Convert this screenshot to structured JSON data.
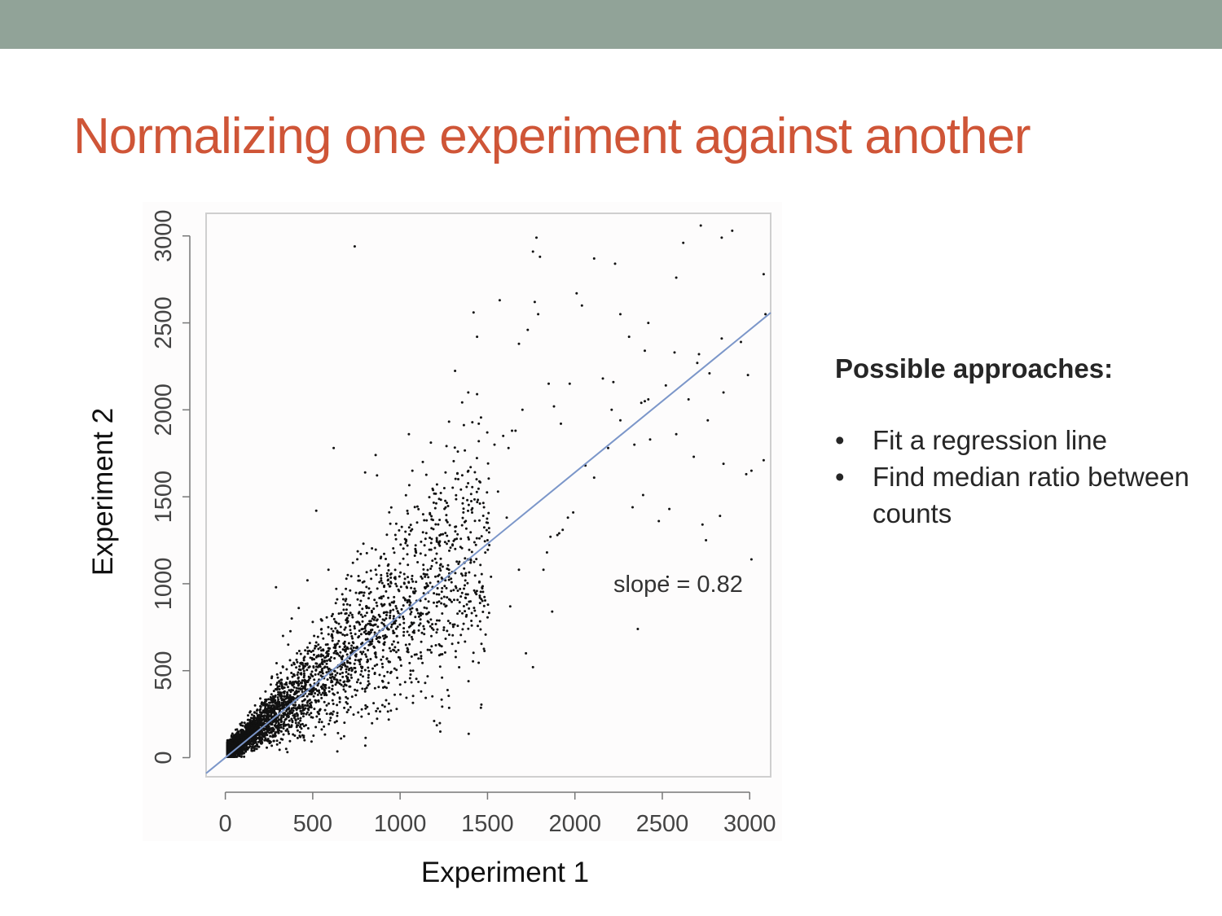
{
  "slide": {
    "title": "Normalizing one experiment against another"
  },
  "colors": {
    "top_bar": "#91a398",
    "title": "#cf5537",
    "regression_line": "#7b96c9",
    "points": "#111111",
    "plot_background": "#fdfcfc"
  },
  "side_panel": {
    "heading": "Possible approaches:",
    "bullet_glyph": "•",
    "bullets": [
      "Fit a regression line",
      "Find median ratio between counts"
    ]
  },
  "chart_data": {
    "type": "scatter",
    "title": "",
    "xlabel": "Experiment 1",
    "ylabel": "Experiment 2",
    "xlim": [
      -110,
      3120
    ],
    "ylim": [
      -110,
      3130
    ],
    "x_ticks": [
      0,
      500,
      1000,
      1500,
      2000,
      2500,
      3000
    ],
    "y_ticks": [
      0,
      500,
      1000,
      1500,
      2000,
      2500,
      3000
    ],
    "grid": false,
    "annotation": "slope = 0.82",
    "regression_line": {
      "slope": 0.82,
      "intercept": 0
    },
    "n_points_approx": 4500,
    "sample_points": [
      [
        740,
        2940
      ],
      [
        1780,
        2990
      ],
      [
        1760,
        2910
      ],
      [
        1800,
        2880
      ],
      [
        2110,
        2870
      ],
      [
        2230,
        2840
      ],
      [
        2620,
        2960
      ],
      [
        2720,
        3060
      ],
      [
        2900,
        3030
      ],
      [
        2840,
        2990
      ],
      [
        3080,
        2780
      ],
      [
        2580,
        2760
      ],
      [
        2010,
        2670
      ],
      [
        1570,
        2630
      ],
      [
        1770,
        2620
      ],
      [
        1420,
        2560
      ],
      [
        1790,
        2550
      ],
      [
        1880,
        2020
      ],
      [
        1920,
        1920
      ],
      [
        1440,
        2420
      ],
      [
        1680,
        2380
      ],
      [
        1730,
        2460
      ],
      [
        2040,
        2600
      ],
      [
        2260,
        2550
      ],
      [
        2420,
        2500
      ],
      [
        2570,
        2330
      ],
      [
        2710,
        2320
      ],
      [
        2850,
        2100
      ],
      [
        2990,
        2200
      ],
      [
        3090,
        2550
      ],
      [
        2400,
        2050
      ],
      [
        2420,
        2060
      ],
      [
        2380,
        2040
      ],
      [
        2340,
        1800
      ],
      [
        2430,
        1830
      ],
      [
        2580,
        1860
      ],
      [
        2680,
        1730
      ],
      [
        2760,
        1940
      ],
      [
        2850,
        1690
      ],
      [
        2980,
        1630
      ],
      [
        3010,
        1650
      ],
      [
        3080,
        1710
      ],
      [
        3010,
        1140
      ],
      [
        2750,
        1250
      ],
      [
        2730,
        1340
      ],
      [
        2830,
        1390
      ],
      [
        2360,
        740
      ],
      [
        2060,
        1680
      ],
      [
        1910,
        1290
      ],
      [
        1900,
        1280
      ],
      [
        1930,
        1310
      ],
      [
        1860,
        1270
      ],
      [
        1960,
        1380
      ],
      [
        1990,
        1410
      ],
      [
        1840,
        1180
      ],
      [
        1820,
        1080
      ],
      [
        1870,
        840
      ],
      [
        1680,
        1080
      ],
      [
        1630,
        870
      ],
      [
        1760,
        520
      ],
      [
        1720,
        600
      ],
      [
        1410,
        760
      ],
      [
        1380,
        820
      ],
      [
        1260,
        870
      ],
      [
        1230,
        150
      ],
      [
        1120,
        570
      ],
      [
        1080,
        730
      ],
      [
        620,
        1780
      ],
      [
        520,
        1420
      ],
      [
        800,
        1640
      ],
      [
        860,
        1740
      ],
      [
        1130,
        1700
      ],
      [
        1070,
        1650
      ],
      [
        1050,
        1860
      ],
      [
        1260,
        1640
      ],
      [
        1560,
        1530
      ],
      [
        1610,
        1380
      ],
      [
        1480,
        1440
      ],
      [
        1590,
        1850
      ],
      [
        1640,
        1880
      ],
      [
        1540,
        1800
      ],
      [
        1440,
        2090
      ],
      [
        1390,
        2100
      ],
      [
        1330,
        1760
      ],
      [
        1450,
        1920
      ],
      [
        1620,
        1780
      ],
      [
        1700,
        2000
      ],
      [
        1660,
        1880
      ],
      [
        2160,
        2180
      ],
      [
        2220,
        2160
      ],
      [
        1850,
        2150
      ],
      [
        1970,
        2150
      ],
      [
        2210,
        2000
      ],
      [
        2260,
        1940
      ],
      [
        2400,
        2340
      ],
      [
        2520,
        2140
      ],
      [
        2650,
        2060
      ],
      [
        2700,
        2270
      ],
      [
        2770,
        2210
      ],
      [
        2950,
        2390
      ],
      [
        2840,
        2410
      ],
      [
        2310,
        2420
      ],
      [
        2540,
        1430
      ],
      [
        2390,
        1510
      ],
      [
        2330,
        1440
      ],
      [
        2480,
        1360
      ],
      [
        2530,
        1040
      ],
      [
        2110,
        1610
      ],
      [
        2190,
        1780
      ],
      [
        1520,
        1040
      ],
      [
        1500,
        1250
      ],
      [
        1390,
        1140
      ],
      [
        1330,
        960
      ],
      [
        1280,
        1080
      ],
      [
        1020,
        920
      ],
      [
        960,
        850
      ],
      [
        930,
        1020
      ],
      [
        860,
        1080
      ],
      [
        790,
        1230
      ],
      [
        730,
        1120
      ],
      [
        690,
        970
      ],
      [
        640,
        910
      ],
      [
        590,
        1080
      ],
      [
        500,
        780
      ],
      [
        470,
        1020
      ],
      [
        420,
        860
      ],
      [
        380,
        800
      ],
      [
        290,
        980
      ],
      [
        360,
        650
      ],
      [
        330,
        700
      ],
      [
        450,
        560
      ],
      [
        520,
        640
      ],
      [
        580,
        540
      ],
      [
        640,
        720
      ],
      [
        700,
        460
      ],
      [
        760,
        560
      ],
      [
        800,
        380
      ],
      [
        840,
        680
      ],
      [
        900,
        520
      ],
      [
        960,
        620
      ],
      [
        1000,
        420
      ],
      [
        1060,
        500
      ],
      [
        1120,
        380
      ],
      [
        1180,
        640
      ],
      [
        1240,
        460
      ],
      [
        700,
        340
      ],
      [
        760,
        260
      ],
      [
        920,
        330
      ],
      [
        980,
        280
      ],
      [
        640,
        240
      ],
      [
        580,
        300
      ],
      [
        540,
        220
      ],
      [
        470,
        260
      ],
      [
        420,
        200
      ],
      [
        360,
        150
      ],
      [
        300,
        160
      ],
      [
        260,
        90
      ],
      [
        220,
        120
      ],
      [
        180,
        50
      ],
      [
        150,
        40
      ],
      [
        120,
        80
      ],
      [
        90,
        30
      ],
      [
        60,
        40
      ],
      [
        40,
        20
      ],
      [
        30,
        60
      ],
      [
        20,
        10
      ],
      [
        70,
        120
      ],
      [
        110,
        200
      ],
      [
        140,
        260
      ],
      [
        170,
        300
      ],
      [
        200,
        340
      ],
      [
        230,
        380
      ],
      [
        260,
        420
      ],
      [
        300,
        460
      ],
      [
        330,
        520
      ],
      [
        370,
        560
      ],
      [
        410,
        600
      ],
      [
        200,
        260
      ],
      [
        250,
        300
      ],
      [
        280,
        240
      ],
      [
        320,
        360
      ],
      [
        350,
        420
      ],
      [
        380,
        320
      ],
      [
        420,
        380
      ],
      [
        460,
        420
      ],
      [
        490,
        480
      ],
      [
        530,
        520
      ],
      [
        560,
        420
      ],
      [
        600,
        460
      ],
      [
        250,
        180
      ],
      [
        310,
        260
      ],
      [
        360,
        280
      ],
      [
        400,
        300
      ],
      [
        150,
        180
      ],
      [
        180,
        220
      ],
      [
        100,
        130
      ],
      [
        130,
        150
      ],
      [
        160,
        140
      ],
      [
        190,
        170
      ],
      [
        210,
        200
      ],
      [
        240,
        230
      ],
      [
        270,
        260
      ],
      [
        300,
        280
      ],
      [
        330,
        300
      ],
      [
        50,
        70
      ],
      [
        80,
        90
      ],
      [
        110,
        100
      ],
      [
        140,
        110
      ],
      [
        170,
        130
      ],
      [
        200,
        150
      ]
    ]
  }
}
